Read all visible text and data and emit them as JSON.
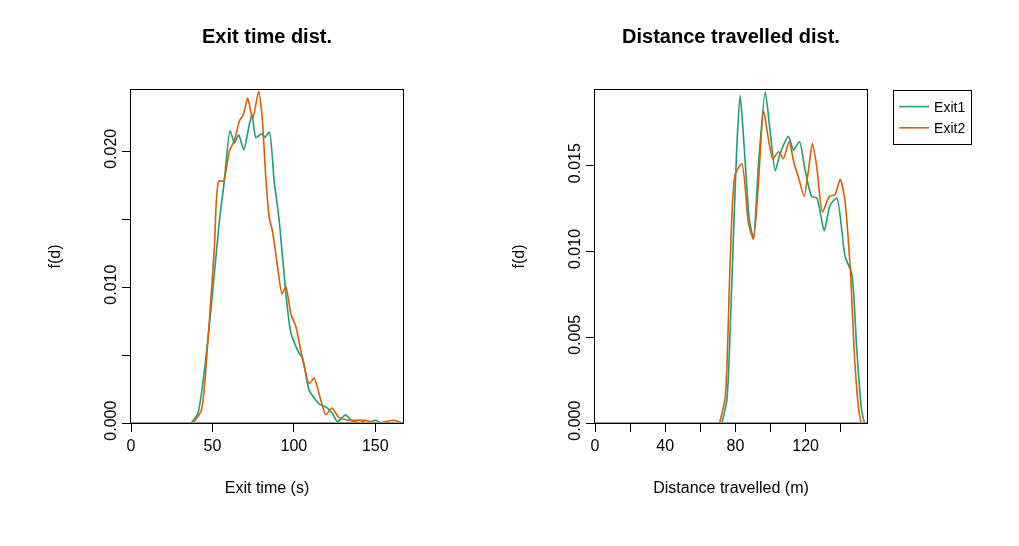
{
  "chart_data": [
    {
      "type": "line",
      "title": "Exit time dist.",
      "xlabel": "Exit time (s)",
      "ylabel": "f(d)",
      "xlim": [
        0,
        167
      ],
      "ylim": [
        0,
        0.0245
      ],
      "xticks": [
        0,
        50,
        100,
        150
      ],
      "yticks": [
        {
          "value": 0,
          "label": "0.000"
        },
        {
          "value": 0.005,
          "label": null
        },
        {
          "value": 0.01,
          "label": "0.010"
        },
        {
          "value": 0.015,
          "label": null
        },
        {
          "value": 0.02,
          "label": "0.020"
        }
      ],
      "grid": false,
      "legend": false,
      "ref_lines": [
        {
          "axis": "y",
          "value": 0,
          "color": "#999999"
        }
      ],
      "series": [
        {
          "color": "#1b9e77",
          "x": [
            36.9,
            41,
            45.1,
            49.2,
            54.3,
            57.3,
            60.8,
            63.5,
            66.1,
            69.2,
            72.7,
            74.3,
            76.7,
            80.4,
            82.2,
            84.9,
            87.9,
            91,
            95.1,
            98.2,
            103.3,
            105.3,
            109.4,
            115.5,
            120.6,
            123.7,
            126.7,
            131.8,
            135.9,
            140,
            145.1,
            149.8,
            154.3,
            166.5
          ],
          "values": [
            0,
            0.0007,
            0.0039,
            0.0085,
            0.0149,
            0.0178,
            0.0215,
            0.0206,
            0.0212,
            0.0201,
            0.022,
            0.0227,
            0.021,
            0.0213,
            0.021,
            0.0214,
            0.0178,
            0.0149,
            0.0095,
            0.0066,
            0.0051,
            0.0048,
            0.0024,
            0.0014,
            0.0011,
            0.0007,
            0.0001,
            0.0006,
            0.0001,
            0.0002,
            0,
            0.0002,
            0,
            0
          ]
        },
        {
          "color": "#d95f02",
          "x": [
            38,
            43.1,
            47.1,
            51.2,
            53.9,
            56.7,
            60.4,
            63.5,
            66.5,
            69,
            71.6,
            74.7,
            78.4,
            80.4,
            82.9,
            84.9,
            86.9,
            90,
            92.7,
            95.1,
            98.2,
            101.2,
            104.3,
            109.4,
            112.4,
            116.5,
            119.6,
            123.3,
            127.8,
            133.9,
            143.1,
            152.2,
            161.4,
            166.5
          ],
          "values": [
            0,
            0.0009,
            0.0058,
            0.0129,
            0.0178,
            0.0178,
            0.02,
            0.0208,
            0.0222,
            0.0227,
            0.0239,
            0.0224,
            0.0244,
            0.0227,
            0.0178,
            0.0151,
            0.0141,
            0.0115,
            0.0095,
            0.01,
            0.008,
            0.0071,
            0.0053,
            0.0029,
            0.0033,
            0.0017,
            0.0006,
            0.0011,
            0.0004,
            0.0002,
            0.0002,
            0,
            0.0002,
            0
          ]
        }
      ]
    },
    {
      "type": "line",
      "title": "Distance travelled dist.",
      "xlabel": "Distance travelled (m)",
      "ylabel": "f(d)",
      "xlim": [
        0,
        155
      ],
      "ylim": [
        0,
        0.0194
      ],
      "xticks": [
        0,
        {
          "value": 20,
          "label": null
        },
        40,
        {
          "value": 60,
          "label": null
        },
        80,
        {
          "value": 100,
          "label": null
        },
        120,
        {
          "value": 140,
          "label": null
        }
      ],
      "yticks": [
        {
          "value": 0,
          "label": "0.000"
        },
        {
          "value": 0.005,
          "label": "0.005"
        },
        {
          "value": 0.01,
          "label": "0.010"
        },
        {
          "value": 0.015,
          "label": "0.015"
        }
      ],
      "grid": false,
      "legend": "top right",
      "ref_lines": [
        {
          "axis": "y",
          "value": 0,
          "color": "#999999"
        }
      ],
      "series": [
        {
          "name": "Exit1",
          "color": "#1b9e77",
          "x": [
            72.3,
            75.1,
            78,
            80.8,
            82.7,
            85,
            88,
            90.3,
            93.2,
            97,
            99.8,
            102.7,
            105.5,
            110.2,
            113.1,
            116.5,
            119.8,
            123.5,
            126.4,
            130.6,
            134,
            137.8,
            142.5,
            146.3,
            149.1,
            152,
            153.9,
            154.8
          ],
          "values": [
            0,
            0.0013,
            0.0083,
            0.0161,
            0.0191,
            0.0161,
            0.0118,
            0.0108,
            0.0151,
            0.0193,
            0.017,
            0.0147,
            0.0157,
            0.0167,
            0.0159,
            0.0164,
            0.0147,
            0.0132,
            0.0131,
            0.0112,
            0.0127,
            0.0131,
            0.0097,
            0.0087,
            0.0044,
            0.0007,
            0,
            0
          ]
        },
        {
          "name": "Exit2",
          "color": "#d95f02",
          "x": [
            71,
            74.2,
            77,
            79.9,
            83.7,
            87.5,
            90.3,
            93.2,
            96,
            98.9,
            101.3,
            104.6,
            107.4,
            110.6,
            113.5,
            116,
            119.2,
            121.6,
            123.9,
            126.4,
            129.6,
            133.6,
            136.8,
            139.7,
            142.1,
            145.4,
            148.2,
            150.7,
            152,
            154.8
          ],
          "values": [
            0,
            0.0015,
            0.0093,
            0.0145,
            0.0151,
            0.0116,
            0.0107,
            0.0141,
            0.0182,
            0.0165,
            0.0154,
            0.0158,
            0.0154,
            0.0164,
            0.0151,
            0.0143,
            0.0132,
            0.0147,
            0.0163,
            0.0149,
            0.0123,
            0.0132,
            0.0133,
            0.0142,
            0.0132,
            0.0091,
            0.0033,
            0.0005,
            0,
            0
          ]
        }
      ]
    }
  ]
}
